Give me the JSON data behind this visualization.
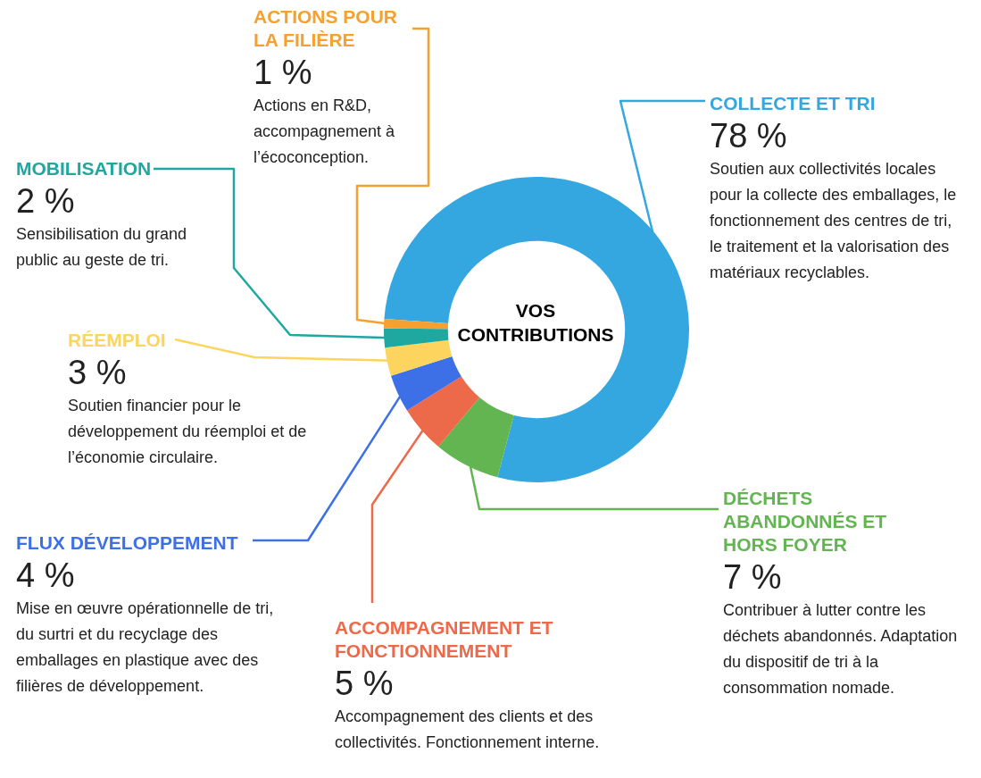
{
  "chart_data": {
    "type": "donut",
    "title": "VOS CONTRIBUTIONS",
    "categories": [
      "COLLECTE ET TRI",
      "DÉCHETS ABANDONNÉS ET HORS FOYER",
      "ACCOMPAGNEMENT ET FONCTIONNEMENT",
      "FLUX DÉVELOPPEMENT",
      "RÉEMPLOI",
      "MOBILISATION",
      "ACTIONS POUR LA FILIÈRE"
    ],
    "values": [
      78,
      7,
      5,
      4,
      3,
      2,
      1
    ],
    "colors": [
      "#35a7e0",
      "#62b550",
      "#ec6a4a",
      "#3d6fe6",
      "#fdd55e",
      "#1ea8a0",
      "#f5a030"
    ],
    "value_labels": [
      "78 %",
      "7 %",
      "5 %",
      "4 %",
      "3 %",
      "2 %",
      "1 %"
    ],
    "annotations": [
      "Soutien aux collectivités locales pour la collecte des emballages, le fonctionnement des centres de tri, le traitement et la valorisation des matériaux recyclables.",
      "Contribuer à lutter contre les déchets abandonnés. Adaptation du dispositif de tri à la consommation nomade.",
      "Accompagnement des clients et des collectivités. Fonctionnement interne.",
      "Mise en œuvre opérationnelle de tri, du surtri et du recyclage des emballages en plastique avec des filières de développement.",
      "Soutien financier pour le développement du réemploi et de l’économie circulaire.",
      "Sensibilisation du grand public au geste de tri.",
      "Actions en R&D, accompagnement à l’écoconception."
    ],
    "legend": false
  }
}
